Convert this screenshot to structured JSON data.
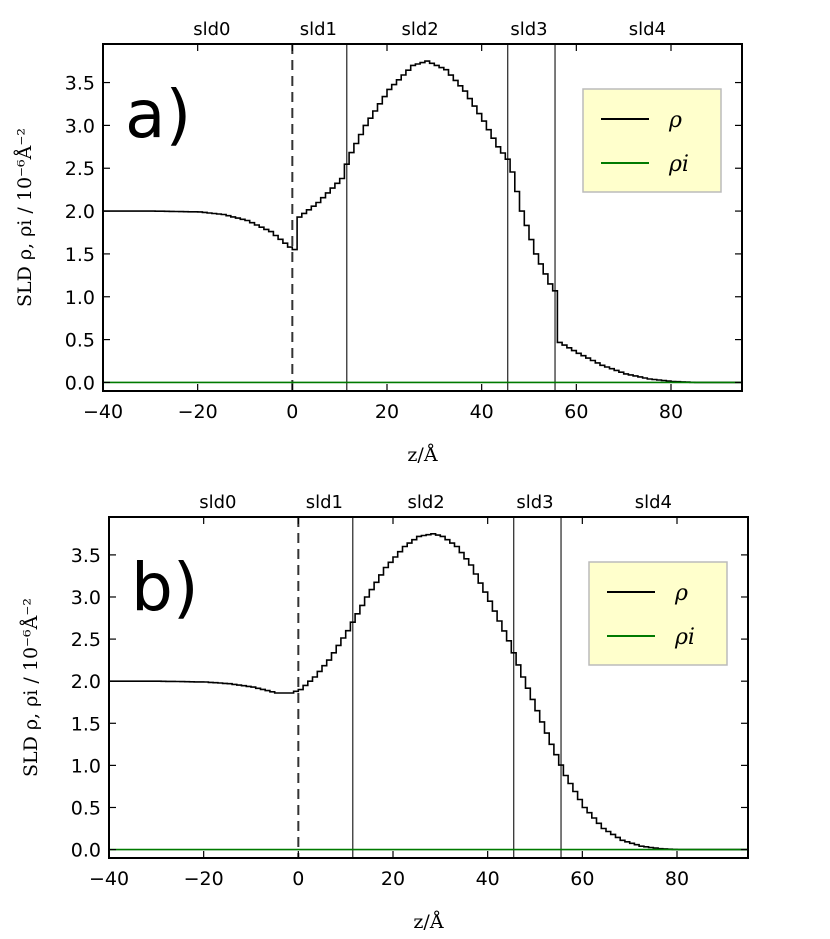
{
  "chart_data": [
    {
      "type": "line",
      "panel_label": "a)",
      "xlabel": "z/Å",
      "ylabel": "SLD ρ, ρi / 10⁻⁶Å⁻²",
      "xlim": [
        -40,
        95
      ],
      "ylim": [
        -0.1,
        3.95
      ],
      "xticks": [
        "−40",
        "−20",
        "0",
        "20",
        "40",
        "60",
        "80"
      ],
      "xtick_values": [
        -40,
        -20,
        0,
        20,
        40,
        60,
        80
      ],
      "yticks": [
        "0.0",
        "0.5",
        "1.0",
        "1.5",
        "2.0",
        "2.5",
        "3.0",
        "3.5"
      ],
      "ytick_values": [
        0.0,
        0.5,
        1.0,
        1.5,
        2.0,
        2.5,
        3.0,
        3.5
      ],
      "layer_labels": [
        {
          "text": "sld0",
          "x": -17
        },
        {
          "text": "sld1",
          "x": 5.5
        },
        {
          "text": "sld2",
          "x": 27
        },
        {
          "text": "sld3",
          "x": 50
        },
        {
          "text": "sld4",
          "x": 75
        }
      ],
      "interfaces": [
        {
          "x": 0,
          "style": "dashed"
        },
        {
          "x": 11.5,
          "style": "solid"
        },
        {
          "x": 45.5,
          "style": "solid"
        },
        {
          "x": 55.5,
          "style": "solid"
        }
      ],
      "legend": {
        "placement": "upper-right",
        "entries": [
          "ρ",
          "ρi"
        ]
      },
      "series": [
        {
          "name": "ρ",
          "color": "#000000",
          "step": true,
          "x": [
            -40,
            -30,
            -20,
            -15,
            -10,
            -5,
            -3,
            -1,
            0,
            0.3,
            5,
            10,
            11.5,
            15,
            20,
            25,
            28,
            32,
            36,
            40,
            43,
            45.5,
            48,
            51,
            54,
            55.5,
            55.6,
            60,
            65,
            70,
            75,
            80,
            85,
            95
          ],
          "y": [
            2.0,
            2.0,
            1.99,
            1.96,
            1.89,
            1.76,
            1.67,
            1.58,
            1.55,
            1.9,
            2.1,
            2.38,
            2.63,
            3.0,
            3.42,
            3.7,
            3.75,
            3.65,
            3.4,
            3.05,
            2.75,
            2.57,
            2.0,
            1.5,
            1.15,
            1.03,
            0.48,
            0.34,
            0.2,
            0.1,
            0.04,
            0.01,
            0.0,
            0.0
          ]
        },
        {
          "name": "ρi",
          "color": "#007a00",
          "step": false,
          "x": [
            -40,
            95
          ],
          "y": [
            0.0,
            0.0
          ]
        }
      ]
    },
    {
      "type": "line",
      "panel_label": "b)",
      "xlabel": "z/Å",
      "ylabel": "SLD ρ, ρi / 10⁻⁶Å⁻²",
      "xlim": [
        -40,
        95
      ],
      "ylim": [
        -0.1,
        3.95
      ],
      "xticks": [
        "−40",
        "−20",
        "0",
        "20",
        "40",
        "60",
        "80"
      ],
      "xtick_values": [
        -40,
        -20,
        0,
        20,
        40,
        60,
        80
      ],
      "yticks": [
        "0.0",
        "0.5",
        "1.0",
        "1.5",
        "2.0",
        "2.5",
        "3.0",
        "3.5"
      ],
      "ytick_values": [
        0.0,
        0.5,
        1.0,
        1.5,
        2.0,
        2.5,
        3.0,
        3.5
      ],
      "layer_labels": [
        {
          "text": "sld0",
          "x": -17
        },
        {
          "text": "sld1",
          "x": 5.5
        },
        {
          "text": "sld2",
          "x": 27
        },
        {
          "text": "sld3",
          "x": 50
        },
        {
          "text": "sld4",
          "x": 75
        }
      ],
      "interfaces": [
        {
          "x": 0,
          "style": "dashed"
        },
        {
          "x": 11.5,
          "style": "solid"
        },
        {
          "x": 45.5,
          "style": "solid"
        },
        {
          "x": 55.5,
          "style": "solid"
        }
      ],
      "legend": {
        "placement": "upper-right",
        "entries": [
          "ρ",
          "ρi"
        ]
      },
      "series": [
        {
          "name": "ρ",
          "color": "#000000",
          "step": true,
          "x": [
            -40,
            -30,
            -20,
            -15,
            -10,
            -5,
            -2,
            0,
            3,
            6,
            10,
            14,
            18,
            22,
            25,
            28,
            30,
            33,
            36,
            40,
            44,
            47,
            50,
            53,
            56,
            60,
            64,
            68,
            72,
            76,
            80,
            85,
            95
          ],
          "y": [
            2.0,
            2.0,
            1.99,
            1.97,
            1.93,
            1.86,
            1.86,
            1.9,
            2.05,
            2.25,
            2.6,
            3.0,
            3.35,
            3.6,
            3.72,
            3.75,
            3.72,
            3.6,
            3.38,
            2.95,
            2.48,
            2.05,
            1.65,
            1.25,
            0.88,
            0.5,
            0.25,
            0.11,
            0.04,
            0.01,
            0.0,
            0.0,
            0.0
          ]
        },
        {
          "name": "ρi",
          "color": "#007a00",
          "step": false,
          "x": [
            -40,
            95
          ],
          "y": [
            0.0,
            0.0
          ]
        }
      ]
    }
  ]
}
